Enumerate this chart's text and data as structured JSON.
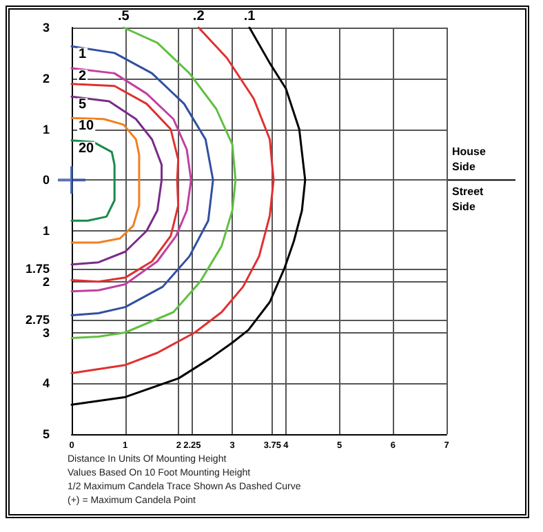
{
  "chart_data": {
    "type": "line",
    "xlabel": "Distance In Units Of Mounting Height",
    "annotations": [
      "House Side",
      "Street Side",
      "Values Based On 10 Foot Mounting Height",
      "1/2 Maximum Candela Trace Shown As Dashed Curve",
      "(+) = Maximum Candela Point"
    ],
    "xlim": [
      0,
      7
    ],
    "xticks": [
      0,
      1,
      2,
      2.25,
      3,
      3.75,
      4,
      5,
      6,
      7
    ],
    "ylim": [
      -5,
      3
    ],
    "yticks": [
      3,
      2,
      1,
      0,
      {
        "value": -1,
        "label": "1"
      },
      {
        "value": -1.75,
        "label": "1.75"
      },
      {
        "value": -2,
        "label": "2"
      },
      {
        "value": -2.75,
        "label": "2.75"
      },
      {
        "value": -3,
        "label": "3"
      },
      {
        "value": -4,
        "label": "4"
      },
      {
        "value": -5,
        "label": "5"
      }
    ],
    "grid": true,
    "legend": false,
    "marker": "none",
    "line_style": "solid",
    "series": [
      {
        "name": "20",
        "color": "#1a8a4a",
        "x": [
          0,
          0.4,
          0.75,
          0.8,
          0.8,
          0.8,
          0.65,
          0.3,
          0
        ],
        "values": [
          0.78,
          0.75,
          0.55,
          0.3,
          0,
          -0.4,
          -0.72,
          -0.8,
          -0.8
        ]
      },
      {
        "name": "10",
        "color": "#f08020",
        "x": [
          0,
          0.6,
          0.97,
          1.2,
          1.26,
          1.26,
          1.26,
          1.15,
          0.9,
          0.5,
          0
        ],
        "values": [
          1.22,
          1.2,
          1.09,
          0.8,
          0.5,
          0,
          -0.5,
          -0.9,
          -1.15,
          -1.23,
          -1.23
        ]
      },
      {
        "name": "5",
        "color": "#7a2a8a",
        "x": [
          0,
          0.7,
          1.2,
          1.5,
          1.68,
          1.68,
          1.6,
          1.4,
          1.0,
          0.5,
          0
        ],
        "values": [
          1.64,
          1.55,
          1.2,
          0.8,
          0.3,
          0,
          -0.6,
          -1.0,
          -1.41,
          -1.62,
          -1.66
        ]
      },
      {
        "color": "#e03030",
        "x": [
          0,
          0.8,
          1.4,
          1.85,
          1.99,
          1.97,
          1.99,
          1.85,
          1.5,
          1.0,
          0.5,
          0
        ],
        "values": [
          1.89,
          1.85,
          1.5,
          1.0,
          0.4,
          0,
          -0.5,
          -1.1,
          -1.6,
          -1.92,
          -2.0,
          -1.97
        ]
      },
      {
        "name": "2",
        "color": "#c040a0",
        "x": [
          0,
          0.8,
          1.4,
          1.9,
          2.15,
          2.23,
          2.15,
          1.95,
          1.6,
          1.0,
          0.5,
          0
        ],
        "values": [
          2.2,
          2.1,
          1.7,
          1.2,
          0.6,
          0,
          -0.6,
          -1.1,
          -1.6,
          -2.05,
          -2.17,
          -2.19
        ]
      },
      {
        "name": "1",
        "color": "#3050a0",
        "x": [
          0,
          0.8,
          1.5,
          2.1,
          2.5,
          2.64,
          2.55,
          2.2,
          1.7,
          1.0,
          0.5,
          0
        ],
        "values": [
          2.63,
          2.5,
          2.1,
          1.5,
          0.8,
          0,
          -0.8,
          -1.5,
          -2.1,
          -2.5,
          -2.62,
          -2.66
        ]
      },
      {
        "name": ".5",
        "color": "#60c040",
        "x": [
          0.97,
          1.6,
          2.2,
          2.7,
          3.0,
          3.06,
          3.0,
          2.8,
          2.4,
          1.9,
          1.0,
          0.5,
          0
        ],
        "values": [
          3.0,
          2.7,
          2.1,
          1.4,
          0.7,
          0,
          -0.6,
          -1.3,
          -2.0,
          -2.6,
          -3.0,
          -3.08,
          -3.11
        ]
      },
      {
        "name": ".2",
        "color": "#e03030",
        "x": [
          2.37,
          2.9,
          3.4,
          3.7,
          3.77,
          3.7,
          3.5,
          3.2,
          2.8,
          2.3,
          1.6,
          1.0,
          0
        ],
        "values": [
          3.0,
          2.4,
          1.6,
          0.8,
          0,
          -0.7,
          -1.5,
          -2.1,
          -2.6,
          -3.0,
          -3.4,
          -3.64,
          -3.8
        ]
      },
      {
        "name": ".1",
        "color": "#000000",
        "x": [
          3.32,
          3.7,
          4.0,
          4.25,
          4.36,
          4.3,
          4.15,
          3.98,
          3.7,
          3.3,
          3.0,
          2.6,
          2.0,
          1.0,
          0
        ],
        "values": [
          3.0,
          2.3,
          1.8,
          1.0,
          0,
          -0.6,
          -1.2,
          -1.72,
          -2.4,
          -2.95,
          -3.2,
          -3.5,
          -3.9,
          -4.27,
          -4.42
        ]
      },
      {
        "type": "scatter",
        "marker": "cross",
        "color": "#3050a0",
        "x": [
          0
        ],
        "values": [
          0
        ]
      }
    ]
  }
}
